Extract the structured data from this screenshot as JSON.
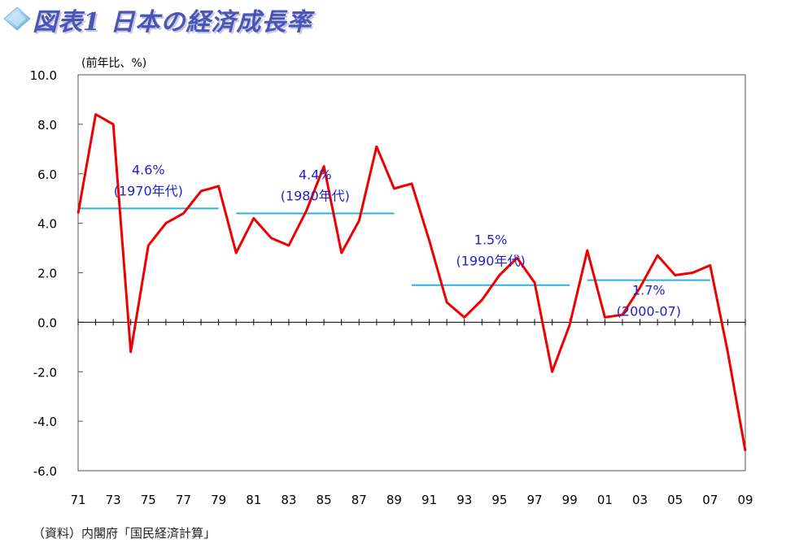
{
  "title": "図表1 日本の経済成長率",
  "source": "（資料）内閣府「国民経済計算」",
  "colors": {
    "series": "#ee0000",
    "average": "#2ab0e8",
    "annotation": "#2222cc",
    "title": "#4a55b5"
  },
  "chart_data": {
    "type": "line",
    "title": "図表1 日本の経済成長率",
    "xlabel": "",
    "ylabel": "(前年比、%)",
    "ylim": [
      -6.0,
      10.0
    ],
    "yticks": [
      "10.0",
      "8.0",
      "6.0",
      "4.0",
      "2.0",
      "0.0",
      "-2.0",
      "-4.0",
      "-6.0"
    ],
    "ytick_values": [
      10,
      8,
      6,
      4,
      2,
      0,
      -2,
      -4,
      -6
    ],
    "x": [
      1971,
      1972,
      1973,
      1974,
      1975,
      1976,
      1977,
      1978,
      1979,
      1980,
      1981,
      1982,
      1983,
      1984,
      1985,
      1986,
      1987,
      1988,
      1989,
      1990,
      1991,
      1992,
      1993,
      1994,
      1995,
      1996,
      1997,
      1998,
      1999,
      2000,
      2001,
      2002,
      2003,
      2004,
      2005,
      2006,
      2007,
      2008,
      2009
    ],
    "xticks": [
      "71",
      "73",
      "75",
      "77",
      "79",
      "81",
      "83",
      "85",
      "87",
      "89",
      "91",
      "93",
      "95",
      "97",
      "99",
      "01",
      "03",
      "05",
      "07",
      "09"
    ],
    "xtick_values": [
      1971,
      1973,
      1975,
      1977,
      1979,
      1981,
      1983,
      1985,
      1987,
      1989,
      1991,
      1993,
      1995,
      1997,
      1999,
      2001,
      2003,
      2005,
      2007,
      2009
    ],
    "series": [
      {
        "values": [
          4.4,
          8.4,
          8.0,
          -1.2,
          3.1,
          4.0,
          4.4,
          5.3,
          5.5,
          2.8,
          4.2,
          3.4,
          3.1,
          4.5,
          6.3,
          2.8,
          4.1,
          7.1,
          5.4,
          5.6,
          3.3,
          0.8,
          0.2,
          0.9,
          1.9,
          2.6,
          1.6,
          -2.0,
          -0.1,
          2.9,
          0.2,
          0.3,
          1.4,
          2.7,
          1.9,
          2.0,
          2.3,
          -1.2,
          -5.2
        ]
      }
    ],
    "averages": [
      {
        "label_value": "4.6%",
        "label_period": "(1970年代)",
        "value": 4.6,
        "from": 1971,
        "to": 1979
      },
      {
        "label_value": "4.4%",
        "label_period": "(1980年代)",
        "value": 4.4,
        "from": 1980,
        "to": 1989
      },
      {
        "label_value": "1.5%",
        "label_period": "(1990年代)",
        "value": 1.5,
        "from": 1990,
        "to": 1999
      },
      {
        "label_value": "1.7%",
        "label_period": "(2000-07)",
        "value": 1.7,
        "from": 2000,
        "to": 2007
      }
    ],
    "grid": false,
    "legend": "none"
  }
}
